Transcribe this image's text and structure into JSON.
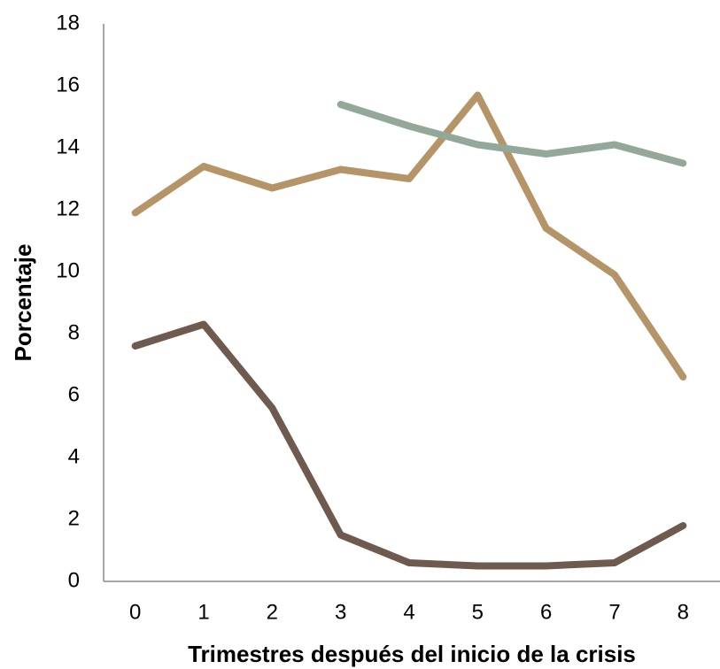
{
  "chart_data": {
    "type": "line",
    "x_label": "Trimestres después del inicio de la crisis",
    "y_label": "Porcentaje",
    "categories": [
      "0",
      "1",
      "2",
      "3",
      "4",
      "5",
      "6",
      "7",
      "8"
    ],
    "series": [
      {
        "color": "#6e5a4e",
        "values": [
          7.6,
          8.3,
          5.6,
          1.5,
          0.6,
          0.5,
          0.5,
          0.6,
          1.8
        ]
      },
      {
        "color": "#b59467",
        "values": [
          11.9,
          13.4,
          12.7,
          13.3,
          13.0,
          15.7,
          11.4,
          9.9,
          6.6
        ]
      },
      {
        "color": "#94a89a",
        "values": [
          null,
          null,
          null,
          15.4,
          14.7,
          14.1,
          13.8,
          14.1,
          13.5
        ]
      }
    ],
    "ylim": [
      0,
      18
    ],
    "yticks": [
      0,
      2,
      4,
      6,
      8,
      10,
      12,
      14,
      16,
      18
    ],
    "grid": false
  }
}
